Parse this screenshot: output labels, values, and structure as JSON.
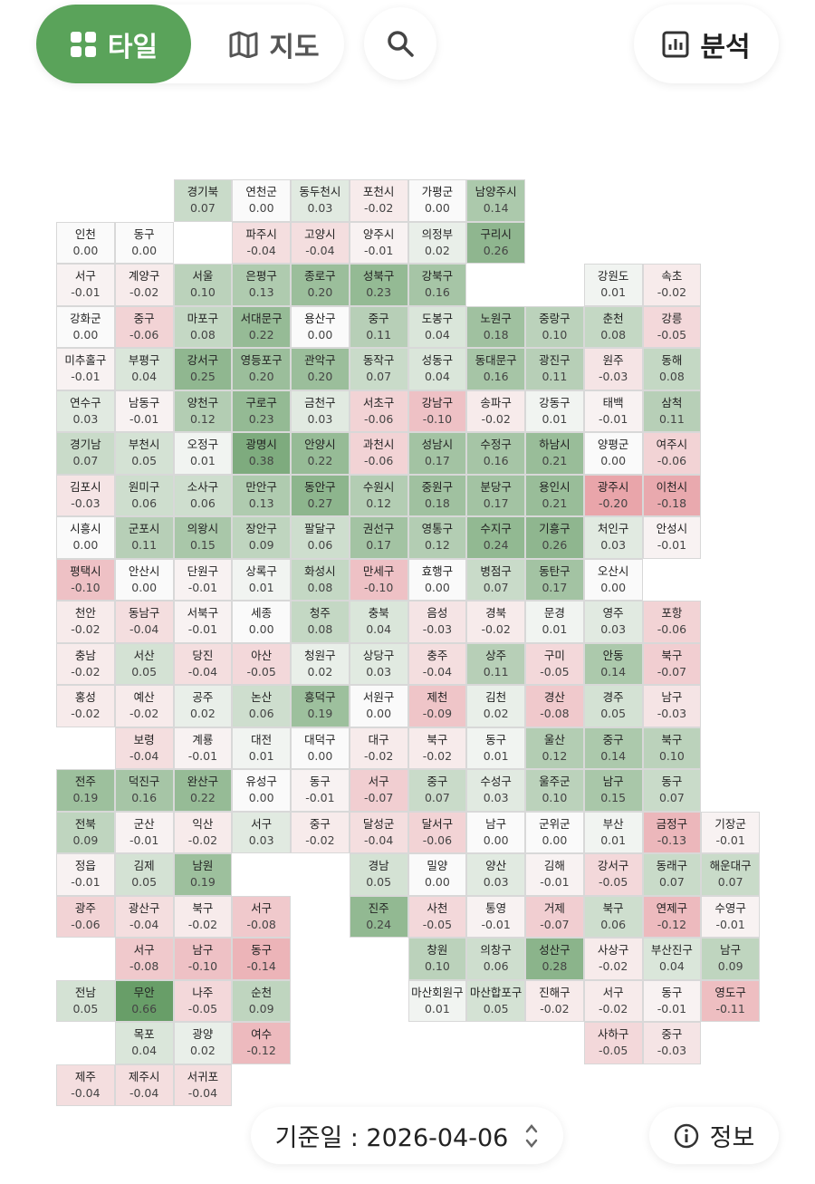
{
  "toolbar": {
    "tile": "타일",
    "map": "지도",
    "analysis": "분석"
  },
  "grid": {
    "rows": [
      {
        "names": [
          null,
          null,
          "경기북",
          "연천군",
          "동두천시",
          "포천시",
          "가평군",
          "남양주시"
        ],
        "values": [
          null,
          null,
          0.07,
          0,
          0.03,
          -0.02,
          0,
          0.14
        ],
        "value_labels": [
          null,
          null,
          "0.07",
          "0.00",
          "0.03",
          "-0.02",
          "0.00",
          "0.14"
        ]
      },
      {
        "names": [
          "인천",
          "동구",
          null,
          "파주시",
          "고양시",
          "양주시",
          "의정부",
          "구리시"
        ],
        "values": [
          0,
          0,
          null,
          -0.04,
          -0.04,
          -0.01,
          0.02,
          0.26
        ],
        "value_labels": [
          "0.00",
          "0.00",
          null,
          "-0.04",
          "-0.04",
          "-0.01",
          "0.02",
          "0.26"
        ]
      },
      {
        "names": [
          "서구",
          "계양구",
          "서울",
          "은평구",
          "종로구",
          "성북구",
          "강북구",
          null,
          null,
          "강원도",
          "속초"
        ],
        "values": [
          -0.01,
          -0.02,
          0.1,
          0.13,
          0.2,
          0.23,
          0.16,
          null,
          null,
          0.01,
          -0.02
        ],
        "value_labels": [
          "-0.01",
          "-0.02",
          "0.10",
          "0.13",
          "0.20",
          "0.23",
          "0.16",
          null,
          null,
          "0.01",
          "-0.02"
        ]
      },
      {
        "names": [
          "강화군",
          "중구",
          "마포구",
          "서대문구",
          "용산구",
          "중구",
          "도봉구",
          "노원구",
          "중랑구",
          "춘천",
          "강릉"
        ],
        "values": [
          0,
          -0.06,
          0.08,
          0.22,
          0,
          0.11,
          0.04,
          0.18,
          0.1,
          0.08,
          -0.05
        ],
        "value_labels": [
          "0.00",
          "-0.06",
          "0.08",
          "0.22",
          "0.00",
          "0.11",
          "0.04",
          "0.18",
          "0.10",
          "0.08",
          "-0.05"
        ]
      },
      {
        "names": [
          "미추홀구",
          "부평구",
          "강서구",
          "영등포구",
          "관악구",
          "동작구",
          "성동구",
          "동대문구",
          "광진구",
          "원주",
          "동해"
        ],
        "values": [
          -0.01,
          0.04,
          0.25,
          0.2,
          0.2,
          0.07,
          0.04,
          0.16,
          0.11,
          -0.03,
          0.08
        ],
        "value_labels": [
          "-0.01",
          "0.04",
          "0.25",
          "0.20",
          "0.20",
          "0.07",
          "0.04",
          "0.16",
          "0.11",
          "-0.03",
          "0.08"
        ]
      },
      {
        "names": [
          "연수구",
          "남동구",
          "양천구",
          "구로구",
          "금천구",
          "서초구",
          "강남구",
          "송파구",
          "강동구",
          "태백",
          "삼척"
        ],
        "values": [
          0.03,
          -0.01,
          0.12,
          0.23,
          0.03,
          -0.06,
          -0.1,
          -0.02,
          0.01,
          -0.01,
          0.11
        ],
        "value_labels": [
          "0.03",
          "-0.01",
          "0.12",
          "0.23",
          "0.03",
          "-0.06",
          "-0.10",
          "-0.02",
          "0.01",
          "-0.01",
          "0.11"
        ]
      },
      {
        "names": [
          "경기남",
          "부천시",
          "오정구",
          "광명시",
          "안양시",
          "과천시",
          "성남시",
          "수정구",
          "하남시",
          "양평군",
          "여주시"
        ],
        "values": [
          0.07,
          0.05,
          0.01,
          0.38,
          0.22,
          -0.06,
          0.17,
          0.16,
          0.21,
          0,
          -0.06
        ],
        "value_labels": [
          "0.07",
          "0.05",
          "0.01",
          "0.38",
          "0.22",
          "-0.06",
          "0.17",
          "0.16",
          "0.21",
          "0.00",
          "-0.06"
        ]
      },
      {
        "names": [
          "김포시",
          "원미구",
          "소사구",
          "만안구",
          "동안구",
          "수원시",
          "중원구",
          "분당구",
          "용인시",
          "광주시",
          "이천시"
        ],
        "values": [
          -0.03,
          0.06,
          0.06,
          0.13,
          0.27,
          0.12,
          0.18,
          0.17,
          0.21,
          -0.2,
          -0.18
        ],
        "value_labels": [
          "-0.03",
          "0.06",
          "0.06",
          "0.13",
          "0.27",
          "0.12",
          "0.18",
          "0.17",
          "0.21",
          "-0.20",
          "-0.18"
        ]
      },
      {
        "names": [
          "시흥시",
          "군포시",
          "의왕시",
          "장안구",
          "팔달구",
          "권선구",
          "영통구",
          "수지구",
          "기흥구",
          "처인구",
          "안성시"
        ],
        "values": [
          0,
          0.11,
          0.15,
          0.09,
          0.06,
          0.17,
          0.12,
          0.24,
          0.26,
          0.03,
          -0.01
        ],
        "value_labels": [
          "0.00",
          "0.11",
          "0.15",
          "0.09",
          "0.06",
          "0.17",
          "0.12",
          "0.24",
          "0.26",
          "0.03",
          "-0.01"
        ]
      },
      {
        "names": [
          "평택시",
          "안산시",
          "단원구",
          "상록구",
          "화성시",
          "만세구",
          "효행구",
          "병점구",
          "동탄구",
          "오산시"
        ],
        "values": [
          -0.1,
          0,
          -0.01,
          0.01,
          0.08,
          -0.1,
          0,
          0.07,
          0.17,
          0
        ],
        "value_labels": [
          "-0.10",
          "0.00",
          "-0.01",
          "0.01",
          "0.08",
          "-0.10",
          "0.00",
          "0.07",
          "0.17",
          "0.00"
        ]
      },
      {
        "names": [
          "천안",
          "동남구",
          "서북구",
          "세종",
          "청주",
          "충북",
          "음성",
          "경북",
          "문경",
          "영주",
          "포항"
        ],
        "values": [
          -0.02,
          -0.04,
          -0.01,
          0,
          0.08,
          0.04,
          -0.03,
          -0.02,
          0.01,
          0.03,
          -0.06
        ],
        "value_labels": [
          "-0.02",
          "-0.04",
          "-0.01",
          "0.00",
          "0.08",
          "0.04",
          "-0.03",
          "-0.02",
          "0.01",
          "0.03",
          "-0.06"
        ]
      },
      {
        "names": [
          "충남",
          "서산",
          "당진",
          "아산",
          "청원구",
          "상당구",
          "충주",
          "상주",
          "구미",
          "안동",
          "북구"
        ],
        "values": [
          -0.02,
          0.05,
          -0.04,
          -0.05,
          0.02,
          0.03,
          -0.04,
          0.11,
          -0.05,
          0.14,
          -0.07
        ],
        "value_labels": [
          "-0.02",
          "0.05",
          "-0.04",
          "-0.05",
          "0.02",
          "0.03",
          "-0.04",
          "0.11",
          "-0.05",
          "0.14",
          "-0.07"
        ]
      },
      {
        "names": [
          "홍성",
          "예산",
          "공주",
          "논산",
          "흥덕구",
          "서원구",
          "제천",
          "김천",
          "경산",
          "경주",
          "남구"
        ],
        "values": [
          -0.02,
          -0.02,
          0.02,
          0.06,
          0.19,
          0,
          -0.09,
          0.02,
          -0.08,
          0.05,
          -0.03
        ],
        "value_labels": [
          "-0.02",
          "-0.02",
          "0.02",
          "0.06",
          "0.19",
          "0.00",
          "-0.09",
          "0.02",
          "-0.08",
          "0.05",
          "-0.03"
        ]
      },
      {
        "names": [
          null,
          "보령",
          "계룡",
          "대전",
          "대덕구",
          "대구",
          "북구",
          "동구",
          "울산",
          "중구",
          "북구"
        ],
        "values": [
          null,
          -0.04,
          -0.01,
          0.01,
          0,
          -0.02,
          -0.02,
          0.01,
          0.12,
          0.14,
          0.1
        ],
        "value_labels": [
          null,
          "-0.04",
          "-0.01",
          "0.01",
          "0.00",
          "-0.02",
          "-0.02",
          "0.01",
          "0.12",
          "0.14",
          "0.10"
        ]
      },
      {
        "names": [
          "전주",
          "덕진구",
          "완산구",
          "유성구",
          "동구",
          "서구",
          "중구",
          "수성구",
          "울주군",
          "남구",
          "동구"
        ],
        "values": [
          0.19,
          0.16,
          0.22,
          0,
          -0.01,
          -0.07,
          0.07,
          0.03,
          0.1,
          0.15,
          0.07
        ],
        "value_labels": [
          "0.19",
          "0.16",
          "0.22",
          "0.00",
          "-0.01",
          "-0.07",
          "0.07",
          "0.03",
          "0.10",
          "0.15",
          "0.07"
        ]
      },
      {
        "names": [
          "전북",
          "군산",
          "익산",
          "서구",
          "중구",
          "달성군",
          "달서구",
          "남구",
          "군위군",
          "부산",
          "금정구",
          "기장군"
        ],
        "values": [
          0.09,
          -0.01,
          -0.02,
          0.03,
          -0.02,
          -0.04,
          -0.06,
          0,
          0,
          0.01,
          -0.13,
          -0.01
        ],
        "value_labels": [
          "0.09",
          "-0.01",
          "-0.02",
          "0.03",
          "-0.02",
          "-0.04",
          "-0.06",
          "0.00",
          "0.00",
          "0.01",
          "-0.13",
          "-0.01"
        ]
      },
      {
        "names": [
          "정읍",
          "김제",
          "남원",
          null,
          null,
          "경남",
          "밀양",
          "양산",
          "김해",
          "강서구",
          "동래구",
          "해운대구"
        ],
        "values": [
          -0.01,
          0.05,
          0.19,
          null,
          null,
          0.05,
          0,
          0.03,
          -0.01,
          -0.05,
          0.07,
          0.07
        ],
        "value_labels": [
          "-0.01",
          "0.05",
          "0.19",
          null,
          null,
          "0.05",
          "0.00",
          "0.03",
          "-0.01",
          "-0.05",
          "0.07",
          "0.07"
        ]
      },
      {
        "names": [
          "광주",
          "광산구",
          "북구",
          "서구",
          null,
          "진주",
          "사천",
          "통영",
          "거제",
          "북구",
          "연제구",
          "수영구"
        ],
        "values": [
          -0.06,
          -0.04,
          -0.02,
          -0.08,
          null,
          0.24,
          -0.05,
          -0.01,
          -0.07,
          0.06,
          -0.12,
          -0.01
        ],
        "value_labels": [
          "-0.06",
          "-0.04",
          "-0.02",
          "-0.08",
          null,
          "0.24",
          "-0.05",
          "-0.01",
          "-0.07",
          "0.06",
          "-0.12",
          "-0.01"
        ]
      },
      {
        "names": [
          null,
          "서구",
          "남구",
          "동구",
          null,
          null,
          "창원",
          "의창구",
          "성산구",
          "사상구",
          "부산진구",
          "남구"
        ],
        "values": [
          null,
          -0.08,
          -0.1,
          -0.14,
          null,
          null,
          0.1,
          0.06,
          0.28,
          -0.02,
          0.04,
          0.09
        ],
        "value_labels": [
          null,
          "-0.08",
          "-0.10",
          "-0.14",
          null,
          null,
          "0.10",
          "0.06",
          "0.28",
          "-0.02",
          "0.04",
          "0.09"
        ]
      },
      {
        "names": [
          "전남",
          "무안",
          "나주",
          "순천",
          null,
          null,
          "마산회원구",
          "마산합포구",
          "진해구",
          "서구",
          "동구",
          "영도구"
        ],
        "values": [
          0.05,
          0.66,
          -0.05,
          0.09,
          null,
          null,
          0.01,
          0.05,
          -0.02,
          -0.02,
          -0.01,
          -0.11
        ],
        "value_labels": [
          "0.05",
          "0.66",
          "-0.05",
          "0.09",
          null,
          null,
          "0.01",
          "0.05",
          "-0.02",
          "-0.02",
          "-0.01",
          "-0.11"
        ]
      },
      {
        "names": [
          null,
          "목포",
          "광양",
          "여수",
          null,
          null,
          null,
          null,
          null,
          "사하구",
          "중구"
        ],
        "values": [
          null,
          0.04,
          0.02,
          -0.12,
          null,
          null,
          null,
          null,
          null,
          -0.05,
          -0.03
        ],
        "value_labels": [
          null,
          "0.04",
          "0.02",
          "-0.12",
          null,
          null,
          null,
          null,
          null,
          "-0.05",
          "-0.03"
        ]
      },
      {
        "names": [
          "제주",
          "제주시",
          "서귀포"
        ],
        "values": [
          -0.04,
          -0.04,
          -0.04
        ],
        "value_labels": [
          "-0.04",
          "-0.04",
          "-0.04"
        ]
      }
    ]
  },
  "footer": {
    "date_label": "기준일 : 2026-04-06",
    "info": "정보"
  }
}
